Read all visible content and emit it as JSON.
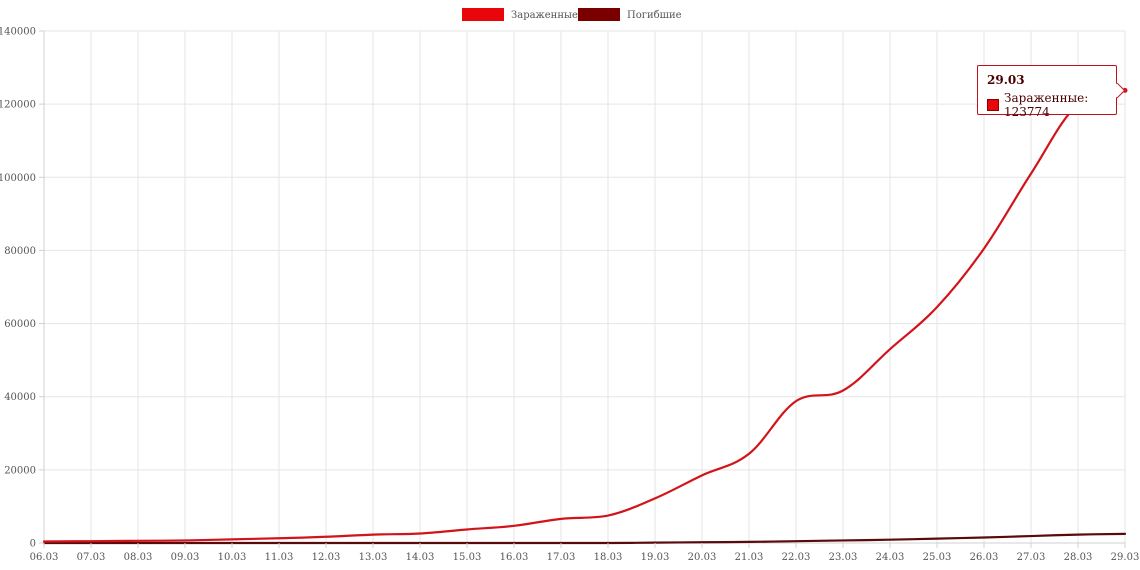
{
  "chart_data": {
    "type": "line",
    "title": "",
    "xlabel": "",
    "ylabel": "",
    "categories": [
      "06.03",
      "07.03",
      "08.03",
      "09.03",
      "10.03",
      "11.03",
      "12.03",
      "13.03",
      "14.03",
      "15.03",
      "16.03",
      "17.03",
      "18.03",
      "19.03",
      "20.03",
      "21.03",
      "22.03",
      "23.03",
      "24.03",
      "25.03",
      "26.03",
      "27.03",
      "28.03",
      "29.03"
    ],
    "ylim": [
      0,
      140000
    ],
    "yticks": [
      0,
      20000,
      40000,
      60000,
      80000,
      100000,
      120000,
      140000
    ],
    "ytick_labels": [
      "0",
      "20000",
      "40000",
      "60000",
      "80000",
      "100000",
      "120000",
      "140000"
    ],
    "grid": true,
    "legend_position": "top-center",
    "series": [
      {
        "name": "Зараженные",
        "color": "#e8060b",
        "line_color": "#d2141a",
        "values": [
          400,
          500,
          600,
          700,
          1000,
          1300,
          1700,
          2300,
          2600,
          3700,
          4700,
          6600,
          7500,
          12200,
          18500,
          24400,
          38800,
          41700,
          53000,
          64500,
          80500,
          101000,
          120000,
          123774
        ]
      },
      {
        "name": "Погибшие",
        "color": "#7a0000",
        "line_color": "#5a0a0a",
        "values": [
          0,
          0,
          0,
          0,
          0,
          0,
          0,
          0,
          0,
          0,
          0,
          0,
          0,
          100,
          200,
          300,
          500,
          700,
          900,
          1200,
          1500,
          1900,
          2300,
          2500
        ]
      }
    ]
  },
  "tooltip": {
    "title": "29.03",
    "series_label": "Зараженные",
    "value": "123774",
    "text": "Зараженные: 123774"
  }
}
